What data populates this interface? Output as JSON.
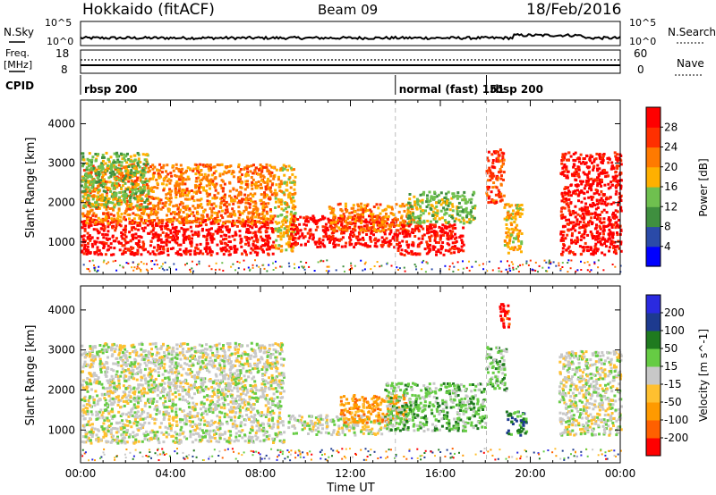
{
  "header": {
    "station": "Hokkaido (fitACF)",
    "beam": "Beam 09",
    "date": "18/Feb/2016"
  },
  "colors": {
    "power": [
      "#0000ff",
      "#2a4aa8",
      "#3f8f3f",
      "#6fc04f",
      "#ffb000",
      "#ff7a00",
      "#ff3000",
      "#ff0000"
    ],
    "velocity": [
      "#2a2ae0",
      "#1d3a8f",
      "#1f7a1f",
      "#66cc44",
      "#c8c8c8",
      "#ffc030",
      "#ff9a00",
      "#ff6000",
      "#ff0000"
    ]
  },
  "top_strip": {
    "nsky_label": "N.Sky",
    "nsky_ticks": [
      "10^5",
      "10^0"
    ],
    "nsky_right_ticks": [
      "10^5",
      "10^0"
    ],
    "nsearch_label": "N.Search",
    "freq_label_1": "Freq.",
    "freq_label_2": "[MHz]",
    "freq_ticks": [
      "18",
      "8"
    ],
    "nave_label": "Nave",
    "nave_ticks": [
      "60",
      "0"
    ],
    "cpid_label": "CPID",
    "cpid_segments": [
      {
        "start": 0.0,
        "end": 14.0,
        "text": "rbsp 200"
      },
      {
        "start": 14.0,
        "end": 18.05,
        "text": "normal (fast) 151"
      },
      {
        "start": 18.05,
        "end": 24.0,
        "text": "rbsp 200"
      }
    ]
  },
  "chart_data": [
    {
      "type": "heatmap",
      "name": "power",
      "ylabel": "Slant Range [km]",
      "xlabel": "",
      "xlim": [
        0,
        24
      ],
      "ylim": [
        180,
        4600
      ],
      "yticks": [
        "1000",
        "2000",
        "3000",
        "4000"
      ],
      "colorbar_label": "Power [dB]",
      "colorbar_ticks": [
        "28",
        "24",
        "20",
        "16",
        "12",
        "8",
        "4"
      ],
      "colorbar_range": [
        0,
        32
      ],
      "blobs": [
        {
          "t0": 0.0,
          "t1": 8.6,
          "r0": 700,
          "r1": 1600,
          "level": 7
        },
        {
          "t0": 0.0,
          "t1": 8.6,
          "r0": 1500,
          "r1": 3000,
          "level": 5
        },
        {
          "t0": 0.0,
          "t1": 3.0,
          "r0": 1900,
          "r1": 3300,
          "level": 3
        },
        {
          "t0": 8.6,
          "t1": 9.5,
          "r0": 800,
          "r1": 3000,
          "level": 4
        },
        {
          "t0": 9.3,
          "t1": 14.0,
          "r0": 900,
          "r1": 1700,
          "level": 7
        },
        {
          "t0": 11.0,
          "t1": 15.0,
          "r0": 1300,
          "r1": 2000,
          "level": 5
        },
        {
          "t0": 14.0,
          "t1": 17.0,
          "r0": 700,
          "r1": 1500,
          "level": 7
        },
        {
          "t0": 14.5,
          "t1": 17.5,
          "r0": 1500,
          "r1": 2300,
          "level": 3
        },
        {
          "t0": 18.0,
          "t1": 18.8,
          "r0": 2000,
          "r1": 3400,
          "level": 6
        },
        {
          "t0": 18.8,
          "t1": 19.6,
          "r0": 700,
          "r1": 2000,
          "level": 4
        },
        {
          "t0": 21.3,
          "t1": 24.0,
          "r0": 700,
          "r1": 3300,
          "level": 7
        }
      ]
    },
    {
      "type": "heatmap",
      "name": "velocity",
      "ylabel": "Slant Range [km]",
      "xlabel": "Time UT",
      "xlim": [
        0,
        24
      ],
      "ylim": [
        180,
        4600
      ],
      "xticks": [
        "00:00",
        "04:00",
        "08:00",
        "12:00",
        "16:00",
        "20:00",
        "00:00"
      ],
      "yticks": [
        "1000",
        "2000",
        "3000",
        "4000"
      ],
      "colorbar_label": "Velocity [m s^-1]",
      "colorbar_ticks": [
        "200",
        "100",
        "50",
        "15",
        "-15",
        "-50",
        "-100",
        "-200"
      ],
      "colorbar_range": [
        -250,
        250
      ],
      "blobs": [
        {
          "t0": 0.0,
          "t1": 9.0,
          "r0": 700,
          "r1": 3200,
          "level": 4
        },
        {
          "t0": 9.2,
          "t1": 13.5,
          "r0": 900,
          "r1": 1400,
          "level": 4
        },
        {
          "t0": 11.5,
          "t1": 14.5,
          "r0": 1200,
          "r1": 1900,
          "level": 6
        },
        {
          "t0": 13.5,
          "t1": 18.0,
          "r0": 1000,
          "r1": 2200,
          "level": 3
        },
        {
          "t0": 18.0,
          "t1": 18.9,
          "r0": 2000,
          "r1": 3100,
          "level": 3
        },
        {
          "t0": 18.9,
          "t1": 19.8,
          "r0": 900,
          "r1": 1500,
          "level": 2
        },
        {
          "t0": 21.2,
          "t1": 24.0,
          "r0": 900,
          "r1": 3000,
          "level": 4
        },
        {
          "t0": 18.6,
          "t1": 19.1,
          "r0": 3600,
          "r1": 4200,
          "level": 8
        }
      ]
    }
  ]
}
